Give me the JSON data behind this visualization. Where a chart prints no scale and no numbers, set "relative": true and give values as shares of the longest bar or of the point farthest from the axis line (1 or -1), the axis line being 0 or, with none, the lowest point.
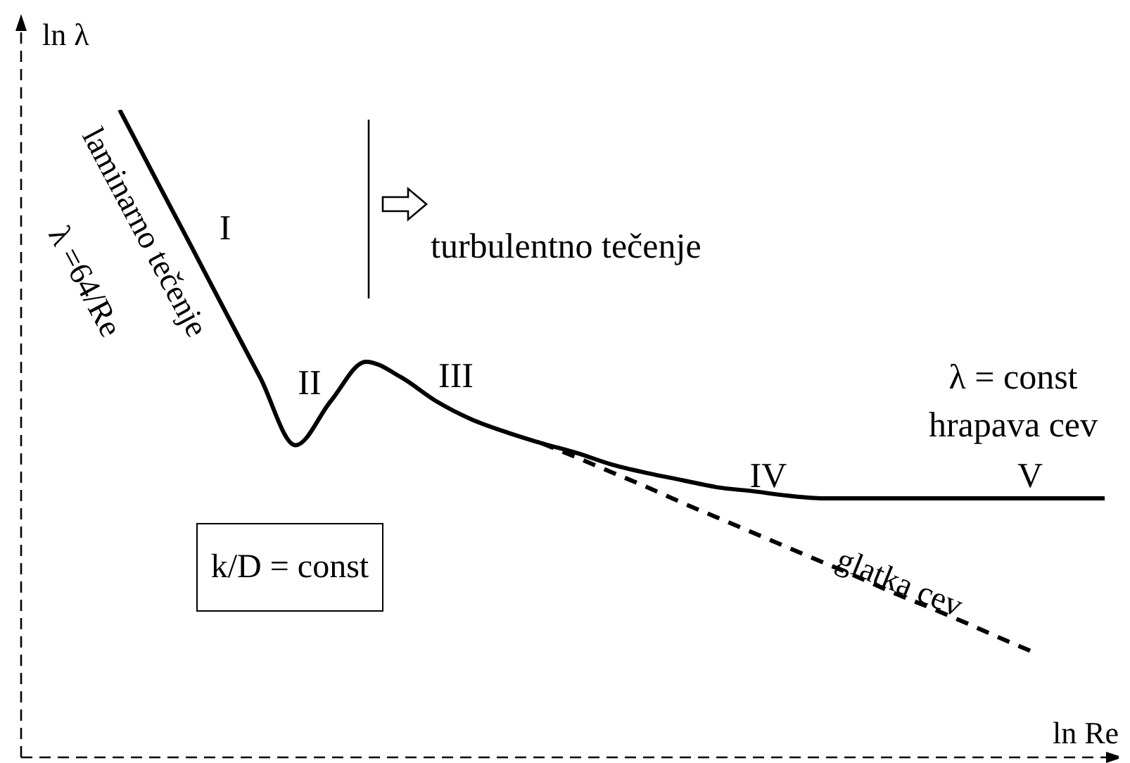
{
  "chart_data": {
    "type": "line",
    "relative": true,
    "xlabel": "ln Re",
    "ylabel": "ln λ",
    "categories": [
      null,
      null,
      null,
      null,
      null,
      null,
      null,
      null,
      null,
      null,
      null,
      null,
      null,
      null,
      null,
      null,
      null,
      null,
      null,
      null,
      null,
      null,
      null,
      null,
      null,
      null,
      null,
      null,
      null
    ],
    "series": [
      {
        "color": "#000000",
        "line_style": "solid",
        "values": [
          1.0,
          0.896,
          0.793,
          0.689,
          0.586,
          0.482,
          0.55,
          0.611,
          0.587,
          0.55,
          0.522,
          0.502,
          0.485,
          0.47,
          0.452,
          0.439,
          0.428,
          0.417,
          0.411,
          0.404,
          0.4,
          0.4,
          0.4,
          0.4,
          0.4,
          0.4,
          0.4,
          0.4,
          0.4
        ]
      },
      {
        "color": "#000000",
        "line_style": "dashed",
        "values": [
          null,
          null,
          null,
          null,
          null,
          null,
          null,
          null,
          null,
          null,
          null,
          null,
          0.485,
          0.463,
          0.44,
          0.417,
          0.393,
          0.37,
          0.347,
          0.324,
          0.301,
          0.278,
          0.254,
          0.232,
          0.209,
          0.185,
          0.162,
          null,
          null
        ]
      }
    ],
    "annotations": [
      "I",
      "II",
      "III",
      "IV",
      "V",
      "laminarno tečenje",
      "λ =64/Re",
      "turbulentno tečenje",
      "λ = const",
      "hrapava cev",
      "glatka cev",
      "k/D = const"
    ],
    "marker": "none",
    "grid": false
  }
}
